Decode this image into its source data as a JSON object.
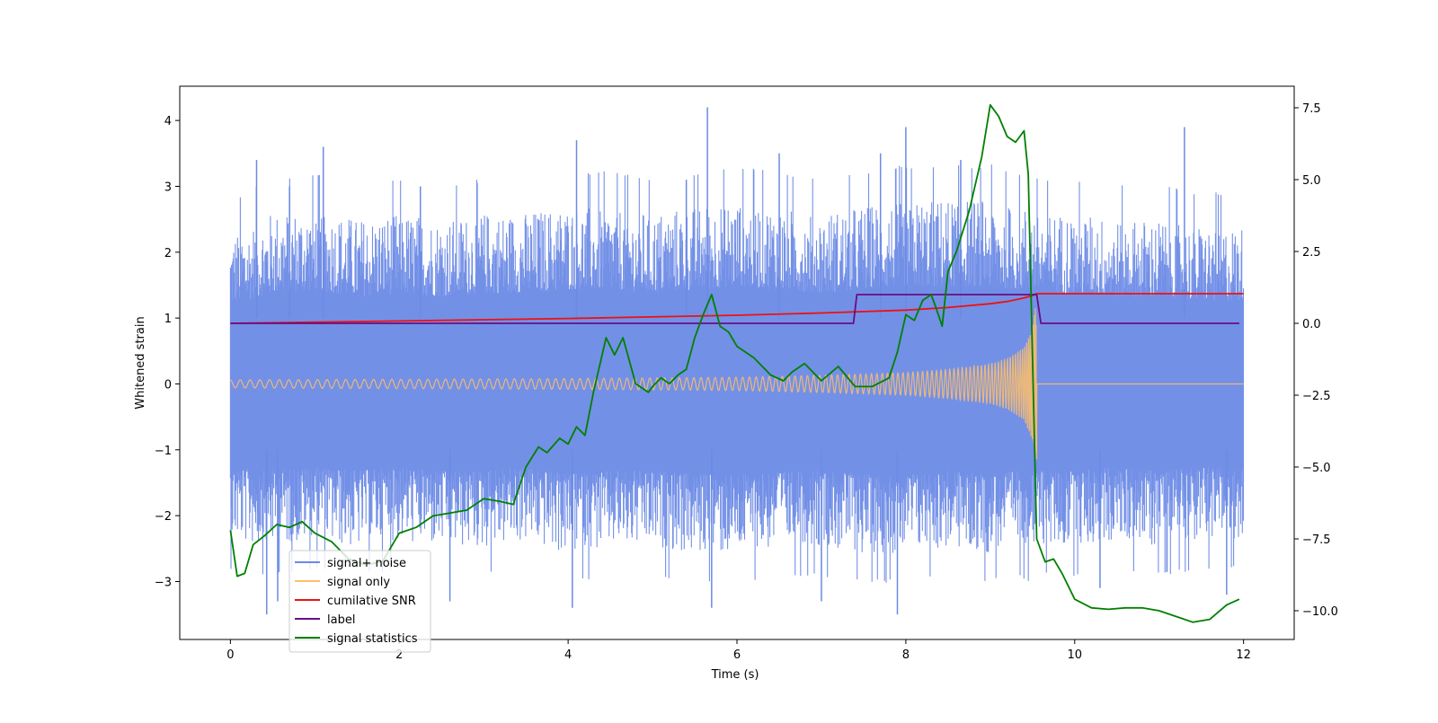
{
  "chart_data": {
    "type": "line",
    "xlabel": "Time (s)",
    "ylabel": "Whitened strain",
    "xlim": [
      -0.6,
      12.6
    ],
    "ylim": [
      -3.88,
      4.52
    ],
    "y2lim": [
      -11.0,
      8.25
    ],
    "xticks": [
      0,
      2,
      4,
      6,
      8,
      10,
      12
    ],
    "xtick_labels": [
      "0",
      "2",
      "4",
      "6",
      "8",
      "10",
      "12"
    ],
    "yticks": [
      -3,
      -2,
      -1,
      0,
      1,
      2,
      3,
      4
    ],
    "ytick_labels": [
      "−3",
      "−2",
      "−1",
      "0",
      "1",
      "2",
      "3",
      "4"
    ],
    "y2ticks": [
      -10,
      -7.5,
      -5,
      -2.5,
      0,
      2.5,
      5,
      7.5
    ],
    "y2tick_labels": [
      "−10.0",
      "−7.5",
      "−5.0",
      "−2.5",
      "0.0",
      "2.5",
      "5.0",
      "7.5"
    ],
    "grid": false,
    "legend_position": "lower-left",
    "series": [
      {
        "name": "signal+ noise",
        "axis": "left",
        "color": "#6b8ae6",
        "note_shape": "dense noise band",
        "envelope": {
          "x": [
            0,
            0.5,
            1,
            1.5,
            2,
            2.5,
            3,
            3.5,
            4,
            4.5,
            5,
            5.5,
            6,
            6.5,
            7,
            7.5,
            8,
            8.5,
            9,
            9.3,
            9.5,
            9.6,
            10,
            10.5,
            11,
            11.5,
            12
          ],
          "upper": [
            2.2,
            2.5,
            2.6,
            2.4,
            2.5,
            2.4,
            2.5,
            2.5,
            2.6,
            2.6,
            2.5,
            2.6,
            2.7,
            2.6,
            2.5,
            2.6,
            2.7,
            2.7,
            2.7,
            2.6,
            2.6,
            2.5,
            2.5,
            2.4,
            2.4,
            2.3,
            2.3
          ],
          "lower": [
            -2.3,
            -2.4,
            -2.3,
            -2.4,
            -2.3,
            -2.4,
            -2.4,
            -2.3,
            -2.5,
            -2.4,
            -2.4,
            -2.5,
            -2.5,
            -2.4,
            -2.4,
            -2.5,
            -2.5,
            -2.4,
            -2.5,
            -2.4,
            -2.5,
            -2.4,
            -2.4,
            -2.3,
            -2.4,
            -2.3,
            -2.3
          ]
        },
        "peaks": [
          {
            "x": 0.31,
            "y": 3.4
          },
          {
            "x": 0.7,
            "y": 3.0
          },
          {
            "x": 1.1,
            "y": 3.6
          },
          {
            "x": 2.25,
            "y": 3.0
          },
          {
            "x": 4.1,
            "y": 3.7
          },
          {
            "x": 5.4,
            "y": 3.1
          },
          {
            "x": 5.65,
            "y": 4.2
          },
          {
            "x": 6.5,
            "y": 3.5
          },
          {
            "x": 7.7,
            "y": 3.5
          },
          {
            "x": 8.0,
            "y": 3.9
          },
          {
            "x": 8.65,
            "y": 3.4
          },
          {
            "x": 11.3,
            "y": 3.9
          }
        ],
        "troughs": [
          {
            "x": 0.43,
            "y": -3.5
          },
          {
            "x": 0.56,
            "y": -3.3
          },
          {
            "x": 2.6,
            "y": -3.3
          },
          {
            "x": 4.05,
            "y": -3.4
          },
          {
            "x": 5.7,
            "y": -3.4
          },
          {
            "x": 7.0,
            "y": -3.3
          },
          {
            "x": 7.9,
            "y": -3.5
          },
          {
            "x": 10.3,
            "y": -3.1
          },
          {
            "x": 11.8,
            "y": -3.2
          }
        ]
      },
      {
        "name": "signal only",
        "axis": "left",
        "color": "#ffbf69",
        "note_shape": "chirp, amplitude grows until merger at about 9.55 s, then zero",
        "x": [
          0,
          2,
          4,
          6,
          7,
          8,
          8.5,
          9.0,
          9.2,
          9.4,
          9.5,
          9.55,
          12
        ],
        "amplitude": [
          0.06,
          0.07,
          0.08,
          0.1,
          0.13,
          0.17,
          0.22,
          0.3,
          0.38,
          0.55,
          0.85,
          1.3,
          0
        ]
      },
      {
        "name": "cumilative SNR",
        "axis": "right",
        "color": "#ee1111",
        "x": [
          0,
          2,
          4,
          6,
          7,
          8,
          8.5,
          9.0,
          9.2,
          9.4,
          9.5,
          9.55,
          12
        ],
        "y": [
          0.0,
          0.08,
          0.17,
          0.28,
          0.36,
          0.46,
          0.55,
          0.68,
          0.76,
          0.88,
          0.97,
          1.03,
          1.03
        ]
      },
      {
        "name": "label",
        "axis": "right",
        "color": "#6a0d83",
        "x": [
          0,
          7.38,
          7.42,
          9.55,
          9.6,
          11.95
        ],
        "y": [
          0,
          0,
          1,
          1,
          0,
          0
        ]
      },
      {
        "name": "signal statistics",
        "axis": "right",
        "color": "#008000",
        "x": [
          0,
          0.08,
          0.17,
          0.27,
          0.4,
          0.55,
          0.7,
          0.85,
          1.0,
          1.2,
          1.4,
          1.6,
          1.8,
          2.0,
          2.2,
          2.4,
          2.6,
          2.8,
          3.0,
          3.2,
          3.35,
          3.5,
          3.65,
          3.75,
          3.9,
          4.0,
          4.1,
          4.2,
          4.3,
          4.45,
          4.55,
          4.65,
          4.8,
          4.95,
          5.0,
          5.1,
          5.2,
          5.3,
          5.4,
          5.5,
          5.6,
          5.7,
          5.8,
          5.9,
          6.0,
          6.2,
          6.4,
          6.55,
          6.65,
          6.8,
          7.0,
          7.2,
          7.4,
          7.6,
          7.8,
          7.9,
          8.0,
          8.1,
          8.2,
          8.3,
          8.35,
          8.43,
          8.5,
          8.6,
          8.75,
          8.9,
          9.0,
          9.1,
          9.2,
          9.3,
          9.4,
          9.45,
          9.55,
          9.65,
          9.75,
          9.85,
          10.0,
          10.2,
          10.4,
          10.6,
          10.8,
          11.0,
          11.2,
          11.4,
          11.6,
          11.8,
          11.95
        ],
        "y": [
          -7.2,
          -8.8,
          -8.7,
          -7.7,
          -7.4,
          -7.0,
          -7.1,
          -6.9,
          -7.3,
          -7.6,
          -8.2,
          -8.4,
          -8.3,
          -7.3,
          -7.1,
          -6.7,
          -6.6,
          -6.5,
          -6.1,
          -6.2,
          -6.3,
          -5.0,
          -4.3,
          -4.5,
          -4.0,
          -4.2,
          -3.6,
          -3.9,
          -2.4,
          -0.5,
          -1.1,
          -0.5,
          -2.1,
          -2.4,
          -2.2,
          -1.9,
          -2.1,
          -1.8,
          -1.6,
          -0.5,
          0.3,
          1.0,
          -0.1,
          -0.3,
          -0.8,
          -1.2,
          -1.8,
          -2.0,
          -1.7,
          -1.4,
          -2.0,
          -1.5,
          -2.2,
          -2.2,
          -1.9,
          -1.0,
          0.3,
          0.1,
          0.8,
          1.0,
          0.6,
          -0.1,
          1.8,
          2.5,
          3.9,
          5.8,
          7.6,
          7.2,
          6.5,
          6.3,
          6.7,
          5.2,
          -7.5,
          -8.3,
          -8.2,
          -8.7,
          -9.6,
          -9.9,
          -9.95,
          -9.9,
          -9.9,
          -10.0,
          -10.2,
          -10.4,
          -10.3,
          -9.8,
          -9.6
        ]
      }
    ]
  }
}
